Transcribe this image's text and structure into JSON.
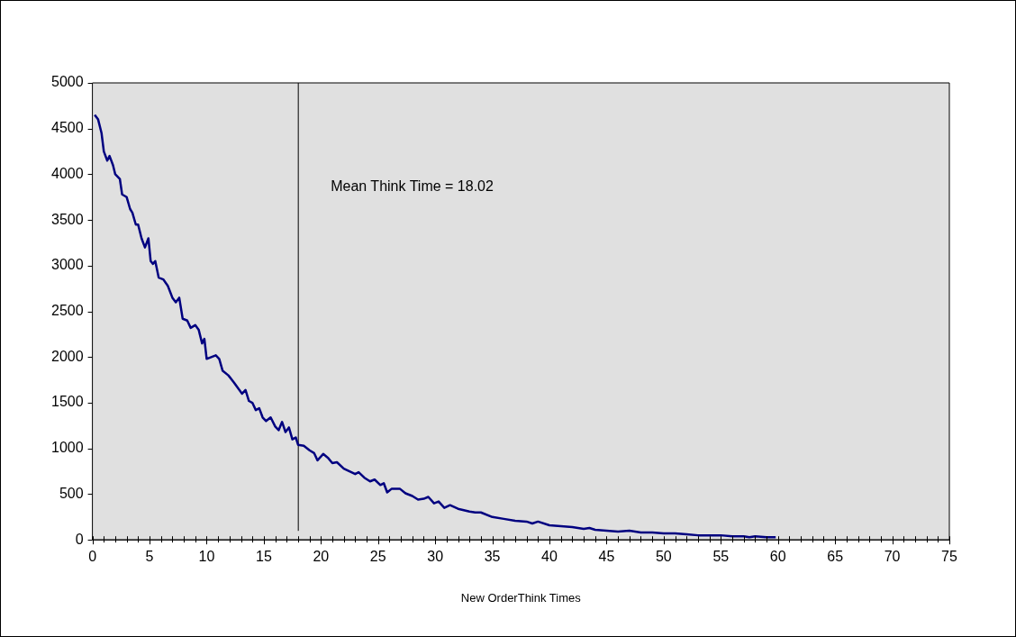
{
  "chart_data": {
    "type": "line",
    "xlabel": "New OrderThink Times",
    "series": [
      {
        "color": "#000080",
        "x": [
          0.2,
          0.5,
          0.8,
          1.0,
          1.3,
          1.5,
          1.8,
          2.0,
          2.4,
          2.6,
          3.0,
          3.3,
          3.5,
          3.8,
          4.0,
          4.3,
          4.6,
          4.9,
          5.1,
          5.3,
          5.5,
          5.8,
          6.2,
          6.6,
          7.0,
          7.3,
          7.6,
          7.9,
          8.3,
          8.6,
          9.0,
          9.3,
          9.6,
          9.8,
          10.0,
          10.4,
          10.8,
          11.1,
          11.4,
          11.9,
          12.4,
          12.8,
          13.1,
          13.4,
          13.7,
          14.0,
          14.3,
          14.6,
          14.9,
          15.2,
          15.6,
          16.0,
          16.3,
          16.6,
          16.9,
          17.2,
          17.5,
          17.8,
          18.0,
          18.5,
          19.0,
          19.4,
          19.7,
          20.2,
          20.6,
          21.0,
          21.4,
          22.0,
          22.5,
          23.0,
          23.3,
          23.8,
          24.3,
          24.7,
          25.2,
          25.5,
          25.8,
          26.2,
          26.9,
          27.4,
          28.0,
          28.5,
          29.0,
          29.4,
          29.9,
          30.3,
          30.8,
          31.3,
          32,
          33,
          33.5,
          34,
          35,
          36,
          37,
          38,
          38.5,
          39,
          40,
          41,
          42,
          43,
          43.5,
          44,
          45,
          46,
          47,
          48,
          49,
          50,
          51,
          52,
          53,
          54,
          55,
          56,
          57,
          57.5,
          58,
          59,
          59.8
        ],
        "values": [
          4650,
          4600,
          4450,
          4250,
          4150,
          4200,
          4100,
          4000,
          3950,
          3780,
          3750,
          3620,
          3580,
          3450,
          3450,
          3300,
          3200,
          3300,
          3050,
          3020,
          3050,
          2870,
          2850,
          2780,
          2650,
          2600,
          2650,
          2420,
          2400,
          2320,
          2350,
          2300,
          2150,
          2200,
          1980,
          2000,
          2020,
          1980,
          1850,
          1800,
          1720,
          1650,
          1600,
          1640,
          1520,
          1500,
          1420,
          1440,
          1340,
          1300,
          1340,
          1240,
          1200,
          1290,
          1180,
          1230,
          1100,
          1120,
          1040,
          1030,
          980,
          950,
          870,
          940,
          900,
          840,
          850,
          780,
          750,
          720,
          740,
          680,
          640,
          660,
          600,
          620,
          520,
          560,
          560,
          510,
          480,
          440,
          450,
          470,
          400,
          420,
          350,
          380,
          340,
          310,
          300,
          300,
          250,
          230,
          210,
          200,
          180,
          200,
          160,
          150,
          140,
          120,
          130,
          110,
          100,
          90,
          100,
          80,
          80,
          70,
          70,
          60,
          50,
          50,
          50,
          40,
          40,
          30,
          40,
          30,
          30
        ]
      }
    ],
    "xlim": [
      0,
      75
    ],
    "xticks": [
      0,
      {
        "value": 1,
        "label": null
      },
      {
        "value": 2,
        "label": null
      },
      {
        "value": 3,
        "label": null
      },
      {
        "value": 4,
        "label": null
      },
      5,
      {
        "value": 6,
        "label": null
      },
      {
        "value": 7,
        "label": null
      },
      {
        "value": 8,
        "label": null
      },
      {
        "value": 9,
        "label": null
      },
      10,
      {
        "value": 11,
        "label": null
      },
      {
        "value": 12,
        "label": null
      },
      {
        "value": 13,
        "label": null
      },
      {
        "value": 14,
        "label": null
      },
      15,
      {
        "value": 16,
        "label": null
      },
      {
        "value": 17,
        "label": null
      },
      {
        "value": 18,
        "label": null
      },
      {
        "value": 19,
        "label": null
      },
      20,
      {
        "value": 21,
        "label": null
      },
      {
        "value": 22,
        "label": null
      },
      {
        "value": 23,
        "label": null
      },
      {
        "value": 24,
        "label": null
      },
      25,
      {
        "value": 26,
        "label": null
      },
      {
        "value": 27,
        "label": null
      },
      {
        "value": 28,
        "label": null
      },
      {
        "value": 29,
        "label": null
      },
      30,
      {
        "value": 31,
        "label": null
      },
      {
        "value": 32,
        "label": null
      },
      {
        "value": 33,
        "label": null
      },
      {
        "value": 34,
        "label": null
      },
      35,
      {
        "value": 36,
        "label": null
      },
      {
        "value": 37,
        "label": null
      },
      {
        "value": 38,
        "label": null
      },
      {
        "value": 39,
        "label": null
      },
      40,
      {
        "value": 41,
        "label": null
      },
      {
        "value": 42,
        "label": null
      },
      {
        "value": 43,
        "label": null
      },
      {
        "value": 44,
        "label": null
      },
      45,
      {
        "value": 46,
        "label": null
      },
      {
        "value": 47,
        "label": null
      },
      {
        "value": 48,
        "label": null
      },
      {
        "value": 49,
        "label": null
      },
      50,
      {
        "value": 51,
        "label": null
      },
      {
        "value": 52,
        "label": null
      },
      {
        "value": 53,
        "label": null
      },
      {
        "value": 54,
        "label": null
      },
      55,
      {
        "value": 56,
        "label": null
      },
      {
        "value": 57,
        "label": null
      },
      {
        "value": 58,
        "label": null
      },
      {
        "value": 59,
        "label": null
      },
      60,
      {
        "value": 61,
        "label": null
      },
      {
        "value": 62,
        "label": null
      },
      {
        "value": 63,
        "label": null
      },
      {
        "value": 64,
        "label": null
      },
      65,
      {
        "value": 66,
        "label": null
      },
      {
        "value": 67,
        "label": null
      },
      {
        "value": 68,
        "label": null
      },
      {
        "value": 69,
        "label": null
      },
      70,
      {
        "value": 71,
        "label": null
      },
      {
        "value": 72,
        "label": null
      },
      {
        "value": 73,
        "label": null
      },
      {
        "value": 74,
        "label": null
      },
      75
    ],
    "ylim": [
      0,
      5000
    ],
    "yticks": [
      0,
      500,
      1000,
      1500,
      2000,
      2500,
      3000,
      3500,
      4000,
      4500,
      5000
    ],
    "ref_lines": [
      {
        "axis": "x",
        "value": 18.02,
        "label": "Mean Think Time = 18.02",
        "color": "#000000"
      }
    ],
    "grid": false,
    "legend": false,
    "marker": "none",
    "line_style": "solid"
  }
}
